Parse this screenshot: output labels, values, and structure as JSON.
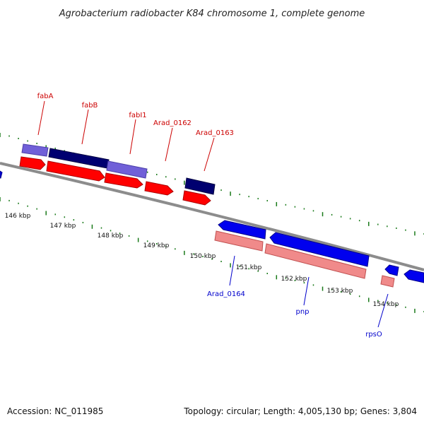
{
  "title": "Agrobacterium radiobacter K84 chromosome 1, complete genome",
  "accession": "Accession: NC_011985",
  "summary": "Topology: circular; Length: 4,005,130 bp; Genes: 3,804",
  "ticks": [
    "146 kbp",
    "147 kbp",
    "148 kbp",
    "149 kbp",
    "150 kbp",
    "151 kbp",
    "152 kbp",
    "153 kbp",
    "154 kbp"
  ],
  "genes": {
    "fabA": "fabA",
    "fabB": "fabB",
    "fabI1": "fabI1",
    "arad0162": "Arad_0162",
    "arad0163": "Arad_0163",
    "arad0164": "Arad_0164",
    "pnp": "pnp",
    "rpsO": "rpsO"
  },
  "colors": {
    "forward_cds": "#ff0000",
    "forward_gene": "#7060d8",
    "forward_dark": "#000070",
    "reverse_cds": "#0000ee",
    "reverse_gene": "#f08a8a",
    "backbone": "#888888",
    "gc_ticks": "#1a7a1a"
  }
}
